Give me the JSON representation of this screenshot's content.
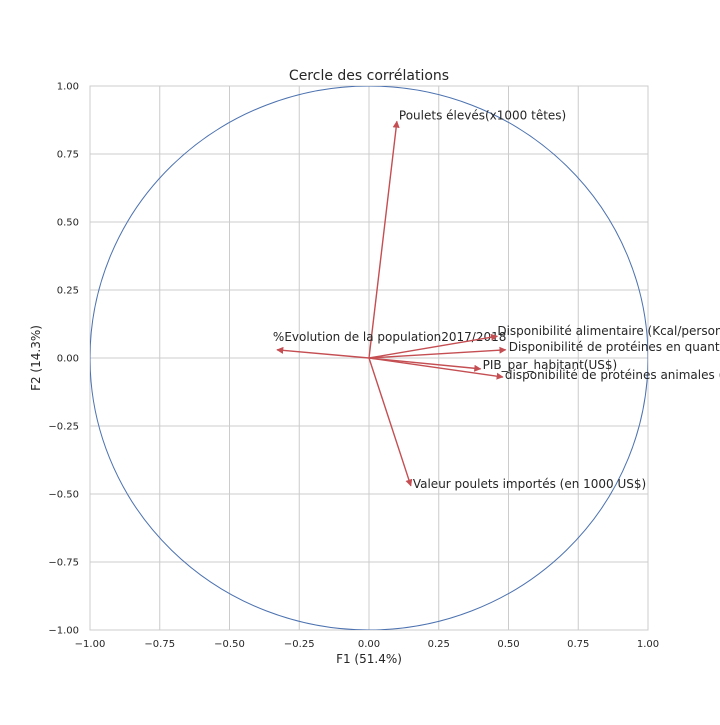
{
  "chart_data": {
    "type": "scatter",
    "title": "Cercle des corrélations",
    "xlabel": "F1 (51.4%)",
    "ylabel": "F2 (14.3%)",
    "xlim": [
      -1.0,
      1.0
    ],
    "ylim": [
      -1.0,
      1.0
    ],
    "xticks": [
      "−1.00",
      "−0.75",
      "−0.50",
      "−0.25",
      "0.00",
      "0.25",
      "0.50",
      "0.75",
      "1.00"
    ],
    "yticks": [
      "−1.00",
      "−0.75",
      "−0.50",
      "−0.25",
      "0.00",
      "0.25",
      "0.50",
      "0.75",
      "1.00"
    ],
    "grid": true,
    "unit_circle": true,
    "circle_color": "#4c72b0",
    "arrow_color": "#c44e52",
    "vectors": [
      {
        "label": "Poulets élevés(x1000 têtes)",
        "x": 0.1,
        "y": 0.87
      },
      {
        "label": "%Evolution de la population2017/2018",
        "x": -0.33,
        "y": 0.03
      },
      {
        "label": "Disponibilité alimentaire (Kcal/personne/jour)",
        "x": 0.46,
        "y": 0.08
      },
      {
        "label": "Disponibilité de protéines en quantité (g/personne/jour)",
        "x": 0.49,
        "y": 0.03
      },
      {
        "label": "PIB_par_habitant(US$)",
        "x": 0.4,
        "y": -0.04
      },
      {
        "label": "disponibilité de protéines animales (g/personne/jour)",
        "x": 0.48,
        "y": -0.07
      },
      {
        "label": "Valeur poulets importés (en 1000 US$)",
        "x": 0.15,
        "y": -0.47
      }
    ]
  }
}
